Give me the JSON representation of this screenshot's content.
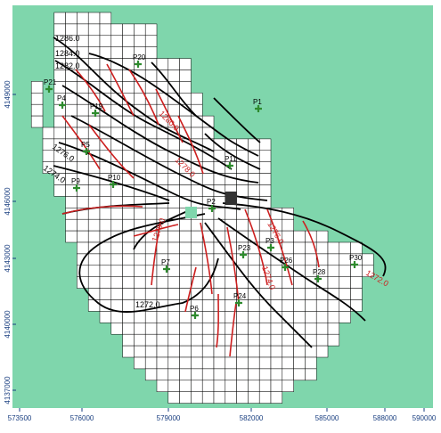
{
  "colors": {
    "inactive": "#7fd6ac",
    "grid_fill": "#ffffff",
    "grid_line": "#000000",
    "contour_black": "#000000",
    "contour_red": "#cc1f1f",
    "well_marker": "#2e8b2e",
    "dark_cell": "#333333",
    "axis_text": "#1a3f80"
  },
  "axes": {
    "x_ticks": [
      "573500",
      "576000",
      "579000",
      "582000",
      "585000",
      "588000",
      "590000"
    ],
    "y_ticks": [
      "4149000",
      "4146000",
      "4143000",
      "4140000",
      "4137000"
    ]
  },
  "wells": [
    {
      "id": "P20",
      "label": "P20"
    },
    {
      "id": "P21",
      "label": "P21"
    },
    {
      "id": "P4",
      "label": "P4"
    },
    {
      "id": "P19",
      "label": "P19"
    },
    {
      "id": "P1",
      "label": "P1"
    },
    {
      "id": "P5",
      "label": "P5"
    },
    {
      "id": "P11",
      "label": "P11"
    },
    {
      "id": "P9",
      "label": "P9"
    },
    {
      "id": "P10",
      "label": "P10"
    },
    {
      "id": "P2",
      "label": "P2"
    },
    {
      "id": "P7",
      "label": "P7"
    },
    {
      "id": "P23",
      "label": "P23"
    },
    {
      "id": "P3",
      "label": "P3"
    },
    {
      "id": "P26",
      "label": "P26"
    },
    {
      "id": "P28",
      "label": "P28"
    },
    {
      "id": "P24",
      "label": "P24"
    },
    {
      "id": "P6",
      "label": "P6"
    },
    {
      "id": "P30",
      "label": "P30"
    }
  ],
  "contour_labels": [
    {
      "text": "1286.0"
    },
    {
      "text": "1284.0"
    },
    {
      "text": "1282.0"
    },
    {
      "text": "1276.0"
    },
    {
      "text": "1274.0"
    },
    {
      "text": "1272.0"
    },
    {
      "text": "1270.0"
    },
    {
      "text": "1280.0"
    },
    {
      "text": "1278.0"
    },
    {
      "text": "1276.0"
    },
    {
      "text": "1274.0"
    },
    {
      "text": "1272.0"
    }
  ]
}
